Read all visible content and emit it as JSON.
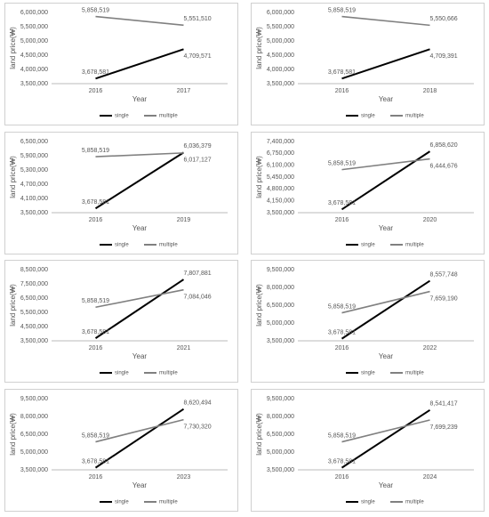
{
  "chart_data": [
    {
      "type": "line",
      "x_label": "Year",
      "y_label": "land price(₩)",
      "categories": [
        "2016",
        "2017"
      ],
      "grid": false,
      "legend": "bottom",
      "ylim": [
        3500000,
        6000000
      ],
      "yticks": [
        {
          "value": 3500000,
          "label": "3,500,000"
        },
        {
          "value": 4000000,
          "label": "4,000,000"
        },
        {
          "value": 4500000,
          "label": "4,500,000"
        },
        {
          "value": 5000000,
          "label": "5,000,000"
        },
        {
          "value": 5500000,
          "label": "5,500,000"
        },
        {
          "value": 6000000,
          "label": "6,000,000"
        }
      ],
      "series": [
        {
          "name": "single",
          "color": "#000000",
          "values": [
            3678581,
            4709571
          ],
          "value_labels": [
            "3,678,581",
            "4,709,571"
          ]
        },
        {
          "name": "multiple",
          "color": "#808080",
          "values": [
            5858519,
            5551510
          ],
          "value_labels": [
            "5,858,519",
            "5,551,510"
          ]
        }
      ]
    },
    {
      "type": "line",
      "x_label": "Year",
      "y_label": "land price(₩)",
      "categories": [
        "2016",
        "2018"
      ],
      "grid": false,
      "legend": "bottom",
      "ylim": [
        3500000,
        6000000
      ],
      "yticks": [
        {
          "value": 3500000,
          "label": "3,500,000"
        },
        {
          "value": 4000000,
          "label": "4,000,000"
        },
        {
          "value": 4500000,
          "label": "4,500,000"
        },
        {
          "value": 5000000,
          "label": "5,000,000"
        },
        {
          "value": 5500000,
          "label": "5,500,000"
        },
        {
          "value": 6000000,
          "label": "6,000,000"
        }
      ],
      "series": [
        {
          "name": "single",
          "color": "#000000",
          "values": [
            3678581,
            4709391
          ],
          "value_labels": [
            "3,678,581",
            "4,709,391"
          ]
        },
        {
          "name": "multiple",
          "color": "#808080",
          "values": [
            5858519,
            5550666
          ],
          "value_labels": [
            "5,858,519",
            "5,550,666"
          ]
        }
      ]
    },
    {
      "type": "line",
      "x_label": "Year",
      "y_label": "land price(₩)",
      "categories": [
        "2016",
        "2019"
      ],
      "grid": false,
      "legend": "bottom",
      "ylim": [
        3500000,
        6500000
      ],
      "yticks": [
        {
          "value": 3500000,
          "label": "3,500,000"
        },
        {
          "value": 4100000,
          "label": "4,100,000"
        },
        {
          "value": 4700000,
          "label": "4,700,000"
        },
        {
          "value": 5300000,
          "label": "5,300,000"
        },
        {
          "value": 5900000,
          "label": "5,900,000"
        },
        {
          "value": 6500000,
          "label": "6,500,000"
        }
      ],
      "series": [
        {
          "name": "single",
          "color": "#000000",
          "values": [
            3678581,
            6036379
          ],
          "value_labels": [
            "3,678,581",
            "6,036,379"
          ]
        },
        {
          "name": "multiple",
          "color": "#808080",
          "values": [
            5858519,
            6017127
          ],
          "value_labels": [
            "5,858,519",
            "6,017,127"
          ]
        }
      ]
    },
    {
      "type": "line",
      "x_label": "Year",
      "y_label": "land price(₩)",
      "categories": [
        "2016",
        "2020"
      ],
      "grid": false,
      "legend": "bottom",
      "ylim": [
        3500000,
        7400000
      ],
      "yticks": [
        {
          "value": 3500000,
          "label": "3,500,000"
        },
        {
          "value": 4150000,
          "label": "4,150,000"
        },
        {
          "value": 4800000,
          "label": "4,800,000"
        },
        {
          "value": 5450000,
          "label": "5,450,000"
        },
        {
          "value": 6100000,
          "label": "6,100,000"
        },
        {
          "value": 6750000,
          "label": "6,750,000"
        },
        {
          "value": 7400000,
          "label": "7,400,000"
        }
      ],
      "series": [
        {
          "name": "single",
          "color": "#000000",
          "values": [
            3678581,
            6858620
          ],
          "value_labels": [
            "3,678,581",
            "6,858,620"
          ]
        },
        {
          "name": "multiple",
          "color": "#808080",
          "values": [
            5858519,
            6444676
          ],
          "value_labels": [
            "5,858,519",
            "6,444,676"
          ]
        }
      ]
    },
    {
      "type": "line",
      "x_label": "Year",
      "y_label": "land price(₩)",
      "categories": [
        "2016",
        "2021"
      ],
      "grid": false,
      "legend": "bottom",
      "ylim": [
        3500000,
        8500000
      ],
      "yticks": [
        {
          "value": 3500000,
          "label": "3,500,000"
        },
        {
          "value": 4500000,
          "label": "4,500,000"
        },
        {
          "value": 5500000,
          "label": "5,500,000"
        },
        {
          "value": 6500000,
          "label": "6,500,000"
        },
        {
          "value": 7500000,
          "label": "7,500,000"
        },
        {
          "value": 8500000,
          "label": "8,500,000"
        }
      ],
      "series": [
        {
          "name": "single",
          "color": "#000000",
          "values": [
            3678581,
            7807881
          ],
          "value_labels": [
            "3,678,581",
            "7,807,881"
          ]
        },
        {
          "name": "multiple",
          "color": "#808080",
          "values": [
            5858519,
            7084046
          ],
          "value_labels": [
            "5,858,519",
            "7,084,046"
          ]
        }
      ]
    },
    {
      "type": "line",
      "x_label": "Year",
      "y_label": "land price(₩)",
      "categories": [
        "2016",
        "2022"
      ],
      "grid": false,
      "legend": "bottom",
      "ylim": [
        3500000,
        9500000
      ],
      "yticks": [
        {
          "value": 3500000,
          "label": "3,500,000"
        },
        {
          "value": 5000000,
          "label": "5,000,000"
        },
        {
          "value": 6500000,
          "label": "6,500,000"
        },
        {
          "value": 8000000,
          "label": "8,000,000"
        },
        {
          "value": 9500000,
          "label": "9,500,000"
        }
      ],
      "series": [
        {
          "name": "single",
          "color": "#000000",
          "values": [
            3678581,
            8557748
          ],
          "value_labels": [
            "3,678,581",
            "8,557,748"
          ]
        },
        {
          "name": "multiple",
          "color": "#808080",
          "values": [
            5858519,
            7659190
          ],
          "value_labels": [
            "5,858,519",
            "7,659,190"
          ]
        }
      ]
    },
    {
      "type": "line",
      "x_label": "Year",
      "y_label": "land price(₩)",
      "categories": [
        "2016",
        "2023"
      ],
      "grid": false,
      "legend": "bottom",
      "ylim": [
        3500000,
        9500000
      ],
      "yticks": [
        {
          "value": 3500000,
          "label": "3,500,000"
        },
        {
          "value": 5000000,
          "label": "5,000,000"
        },
        {
          "value": 6500000,
          "label": "6,500,000"
        },
        {
          "value": 8000000,
          "label": "8,000,000"
        },
        {
          "value": 9500000,
          "label": "9,500,000"
        }
      ],
      "series": [
        {
          "name": "single",
          "color": "#000000",
          "values": [
            3678581,
            8620494
          ],
          "value_labels": [
            "3,678,581",
            "8,620,494"
          ]
        },
        {
          "name": "multiple",
          "color": "#808080",
          "values": [
            5858519,
            7730320
          ],
          "value_labels": [
            "5,858,519",
            "7,730,320"
          ]
        }
      ]
    },
    {
      "type": "line",
      "x_label": "Year",
      "y_label": "land price(₩)",
      "categories": [
        "2016",
        "2024"
      ],
      "grid": false,
      "legend": "bottom",
      "ylim": [
        3500000,
        9500000
      ],
      "yticks": [
        {
          "value": 3500000,
          "label": "3,500,000"
        },
        {
          "value": 5000000,
          "label": "5,000,000"
        },
        {
          "value": 6500000,
          "label": "6,500,000"
        },
        {
          "value": 8000000,
          "label": "8,000,000"
        },
        {
          "value": 9500000,
          "label": "9,500,000"
        }
      ],
      "series": [
        {
          "name": "single",
          "color": "#000000",
          "values": [
            3678581,
            8541417
          ],
          "value_labels": [
            "3,678,581",
            "8,541,417"
          ]
        },
        {
          "name": "multiple",
          "color": "#808080",
          "values": [
            5858519,
            7699239
          ],
          "value_labels": [
            "5,858,519",
            "7,699,239"
          ]
        }
      ]
    }
  ]
}
